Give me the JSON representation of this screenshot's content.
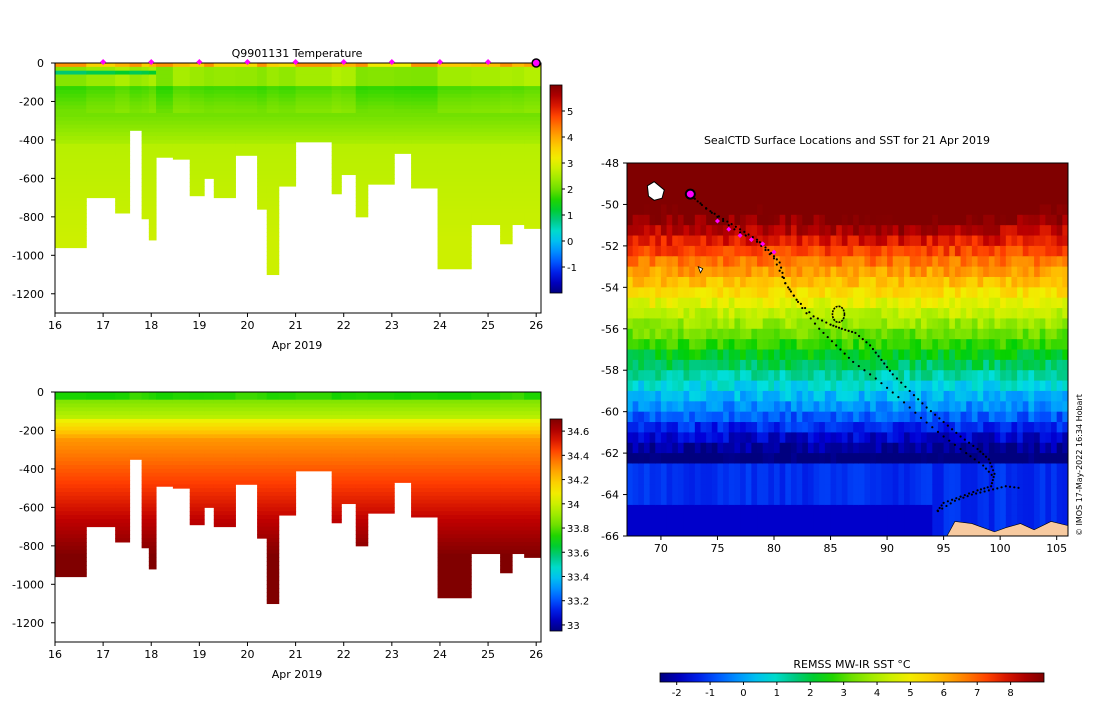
{
  "colors": {
    "background": "#ffffff",
    "track": "#000000",
    "profile_marker": "#ff00ff",
    "current_position": "#7a2080",
    "land": "#f7caa0"
  },
  "chart_data": [
    {
      "type": "heatmap",
      "id": "temperature",
      "title": "Q9901131  Temperature",
      "xlabel": "Apr 2019",
      "xlim": [
        16,
        26.1
      ],
      "ylim": [
        -1300,
        0
      ],
      "xticks": [
        "16",
        "17",
        "18",
        "19",
        "20",
        "21",
        "22",
        "23",
        "24",
        "25",
        "26"
      ],
      "yticks": [
        "0",
        "-200",
        "-400",
        "-600",
        "-800",
        "-1000",
        "-1200"
      ],
      "colorbar": {
        "min": -2,
        "max": 6,
        "ticks": [
          "-1",
          "0",
          "1",
          "2",
          "3",
          "4",
          "5"
        ]
      },
      "profile_marks_x": [
        17,
        18,
        19,
        20,
        21,
        22,
        23,
        24,
        25
      ],
      "current_profile_x": 26,
      "profiles": [
        {
          "x0": 16.0,
          "x1": 16.65,
          "depth": 960
        },
        {
          "x0": 16.65,
          "x1": 17.25,
          "depth": 700
        },
        {
          "x0": 17.25,
          "x1": 17.55,
          "depth": 780
        },
        {
          "x0": 17.55,
          "x1": 17.8,
          "depth": 350
        },
        {
          "x0": 17.8,
          "x1": 17.95,
          "depth": 810
        },
        {
          "x0": 17.95,
          "x1": 18.1,
          "depth": 920
        },
        {
          "x0": 18.1,
          "x1": 18.45,
          "depth": 490
        },
        {
          "x0": 18.45,
          "x1": 18.8,
          "depth": 500
        },
        {
          "x0": 18.8,
          "x1": 19.1,
          "depth": 690
        },
        {
          "x0": 19.1,
          "x1": 19.3,
          "depth": 600
        },
        {
          "x0": 19.3,
          "x1": 19.75,
          "depth": 700
        },
        {
          "x0": 19.75,
          "x1": 20.2,
          "depth": 480
        },
        {
          "x0": 20.2,
          "x1": 20.4,
          "depth": 760
        },
        {
          "x0": 20.4,
          "x1": 20.65,
          "depth": 1100
        },
        {
          "x0": 20.65,
          "x1": 21.0,
          "depth": 640
        },
        {
          "x0": 21.0,
          "x1": 21.75,
          "depth": 410
        },
        {
          "x0": 21.75,
          "x1": 21.95,
          "depth": 680
        },
        {
          "x0": 21.95,
          "x1": 22.25,
          "depth": 580
        },
        {
          "x0": 22.25,
          "x1": 22.5,
          "depth": 800
        },
        {
          "x0": 22.5,
          "x1": 23.05,
          "depth": 630
        },
        {
          "x0": 23.05,
          "x1": 23.4,
          "depth": 470
        },
        {
          "x0": 23.4,
          "x1": 23.95,
          "depth": 650
        },
        {
          "x0": 23.95,
          "x1": 24.65,
          "depth": 1070
        },
        {
          "x0": 24.65,
          "x1": 25.25,
          "depth": 840
        },
        {
          "x0": 25.25,
          "x1": 25.5,
          "depth": 940
        },
        {
          "x0": 25.5,
          "x1": 25.75,
          "depth": 840
        },
        {
          "x0": 25.75,
          "x1": 26.1,
          "depth": 860
        }
      ]
    },
    {
      "type": "heatmap",
      "id": "salinity",
      "title": "",
      "xlabel": "Apr 2019",
      "xlim": [
        16,
        26.1
      ],
      "ylim": [
        -1300,
        0
      ],
      "xticks": [
        "16",
        "17",
        "18",
        "19",
        "20",
        "21",
        "22",
        "23",
        "24",
        "25",
        "26"
      ],
      "yticks": [
        "0",
        "-200",
        "-400",
        "-600",
        "-800",
        "-1000",
        "-1200"
      ],
      "colorbar": {
        "min": 32.95,
        "max": 34.7,
        "ticks": [
          "33",
          "33.2",
          "33.4",
          "33.6",
          "33.8",
          "34",
          "34.2",
          "34.4",
          "34.6"
        ]
      }
    },
    {
      "type": "map",
      "id": "sst_map",
      "title": "SealCTD Surface Locations and SST for 21 Apr 2019",
      "xlim": [
        67,
        106
      ],
      "ylim": [
        -66,
        -48
      ],
      "xticks": [
        "70",
        "75",
        "80",
        "85",
        "90",
        "95",
        "100",
        "105"
      ],
      "yticks": [
        "-48",
        "-50",
        "-52",
        "-54",
        "-56",
        "-58",
        "-60",
        "-62",
        "-64",
        "-66"
      ],
      "credit": "© IMOS 17-May-2022 16:34 Hobart",
      "colorbar_label": "REMSS MW-IR SST °C",
      "colorbar": {
        "min": -2.5,
        "max": 9.0,
        "ticks": [
          "-2",
          "-1",
          "0",
          "1",
          "2",
          "3",
          "4",
          "5",
          "6",
          "7",
          "8"
        ]
      },
      "track_lon": [
        72.5,
        74,
        75.5,
        77,
        78.5,
        79.5,
        80.5,
        81,
        82,
        83.5,
        85,
        86,
        87.2,
        88.5,
        89.5,
        90.5,
        92,
        93.5,
        95,
        96.5,
        98,
        99,
        99.5,
        99.2,
        98,
        96.5,
        95,
        94.3
      ],
      "track_lat": [
        -49.5,
        -50.2,
        -50.7,
        -51.2,
        -51.7,
        -52.2,
        -52.8,
        -53.8,
        -54.6,
        -55.4,
        -55.8,
        -56.0,
        -56.2,
        -56.8,
        -57.5,
        -58.2,
        -59.0,
        -59.8,
        -60.5,
        -61.2,
        -61.8,
        -62.3,
        -63.0,
        -63.6,
        -63.8,
        -64.1,
        -64.4,
        -64.9
      ],
      "track2_lon": [
        72.5,
        74.5,
        76.5,
        78.5,
        80,
        81,
        82.5,
        84,
        85.5,
        87,
        89,
        91,
        93,
        95,
        97,
        98.5,
        99.5
      ],
      "track2_lat": [
        -49.5,
        -50.4,
        -51.2,
        -51.8,
        -52.6,
        -53.8,
        -55.0,
        -56.0,
        -56.8,
        -57.6,
        -58.4,
        -59.3,
        -60.3,
        -61.2,
        -62.0,
        -62.6,
        -63.2
      ],
      "recent_profiles_lon": [
        75,
        76,
        77,
        78,
        79,
        80
      ],
      "recent_profiles_lat": [
        -50.8,
        -51.2,
        -51.5,
        -51.7,
        -51.9,
        -52.3
      ],
      "current_position": {
        "lon": 72.6,
        "lat": -49.5
      },
      "loop_center": {
        "lon": 85.7,
        "lat": -55.3
      },
      "east_track_lon": [
        94.5,
        96,
        97.5,
        99,
        100.5,
        102
      ],
      "east_track_lat": [
        -64.8,
        -64.3,
        -64.0,
        -63.8,
        -63.6,
        -63.7
      ]
    }
  ]
}
